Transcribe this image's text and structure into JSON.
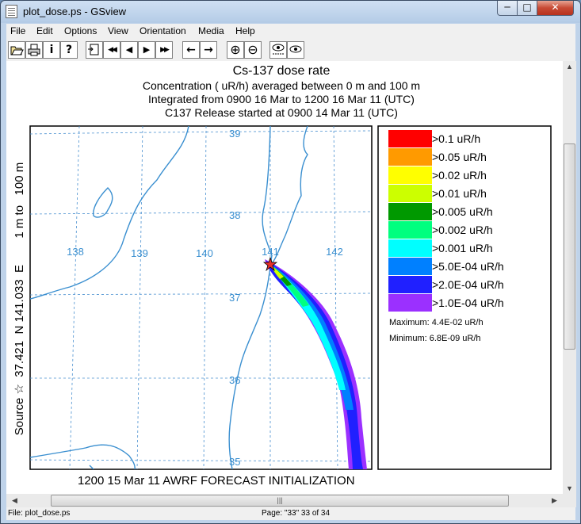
{
  "window": {
    "title": "plot_dose.ps - GSview",
    "min_label": "─",
    "max_label": "□",
    "close_label": "✕"
  },
  "menu": [
    "File",
    "Edit",
    "Options",
    "View",
    "Orientation",
    "Media",
    "Help"
  ],
  "toolbar": {
    "icons": [
      "open-icon",
      "print-icon",
      "info-icon",
      "help-icon",
      "goto-page-icon",
      "first-page-icon",
      "prev-page-icon",
      "next-page-icon",
      "last-page-icon",
      "back-icon",
      "forward-icon",
      "zoom-in-icon",
      "zoom-out-icon",
      "text-extract-icon",
      "find-icon"
    ],
    "glyphs": {
      "info": "i",
      "help": "?",
      "first": "◀◀",
      "prev": "◀",
      "next": "▶",
      "last": "▶▶",
      "back": "←",
      "forward": "→",
      "zoomin": "⊕",
      "zoomout": "⊖"
    }
  },
  "plot": {
    "title": "Cs-137 dose rate",
    "line1": "Concentration  ( uR/h) averaged between     0 m and   100 m",
    "line2": "Integrated from 0900 16 Mar to 1200 16 Mar 11 (UTC)",
    "line3": "C137 Release started at 0900 14 Mar 11 (UTC)",
    "side_label": "Source ☆  37.421  N 141.033  E        1 m to   100 m",
    "footer": "1200 15 Mar 11 AWRF FORECAST INITIALIZATION",
    "lat_labels": [
      "39",
      "38",
      "37",
      "36",
      "35"
    ],
    "lon_labels": [
      "138",
      "139",
      "140",
      "141",
      "142"
    ],
    "maximum": "Maximum: 4.4E-02  uR/h",
    "minimum": "Minimum: 6.8E-09  uR/h",
    "legend": [
      {
        "label": ">0.1  uR/h",
        "color": "#ff0000"
      },
      {
        "label": ">0.05  uR/h",
        "color": "#ff9a00"
      },
      {
        "label": ">0.02  uR/h",
        "color": "#ffff00"
      },
      {
        "label": ">0.01  uR/h",
        "color": "#ccff00"
      },
      {
        "label": ">0.005  uR/h",
        "color": "#009900"
      },
      {
        "label": ">0.002  uR/h",
        "color": "#00ff7f"
      },
      {
        "label": ">0.001  uR/h",
        "color": "#00ffff"
      },
      {
        "label": ">5.0E-04  uR/h",
        "color": "#0080ff"
      },
      {
        "label": ">2.0E-04  uR/h",
        "color": "#2020ff"
      },
      {
        "label": ">1.0E-04  uR/h",
        "color": "#9b30ff"
      }
    ]
  },
  "status": {
    "file": "File: plot_dose.ps",
    "page": "Page: \"33\"  33 of 34"
  },
  "scroll": {
    "grip": "|||"
  }
}
